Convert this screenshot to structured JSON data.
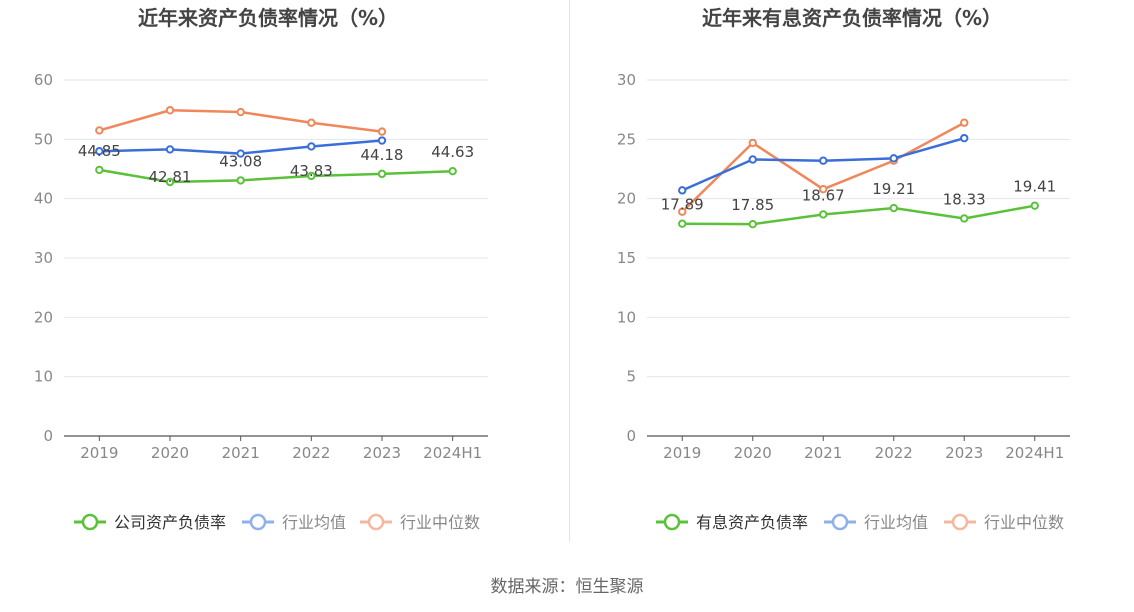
{
  "source_text": "数据来源：恒生聚源",
  "chart_data": [
    {
      "type": "line",
      "title": "近年来资产负债率情况（%）",
      "categories": [
        "2019",
        "2020",
        "2021",
        "2022",
        "2023",
        "2024H1"
      ],
      "ylim": [
        0,
        60
      ],
      "yticks": [
        0,
        10,
        20,
        30,
        40,
        50,
        60
      ],
      "grid": true,
      "legend_position": "bottom",
      "series": [
        {
          "name": "公司资产负债率",
          "color": "#5ac13a",
          "values": [
            44.85,
            42.81,
            43.08,
            43.83,
            44.18,
            44.63
          ],
          "show_labels": true
        },
        {
          "name": "行业均值",
          "color": "#3a6fd9",
          "values": [
            48.0,
            48.3,
            47.6,
            48.8,
            49.8,
            null
          ],
          "show_labels": false
        },
        {
          "name": "行业中位数",
          "color": "#f0875a",
          "values": [
            51.5,
            54.9,
            54.6,
            52.8,
            51.3,
            null
          ],
          "show_labels": false
        }
      ]
    },
    {
      "type": "line",
      "title": "近年来有息资产负债率情况（%）",
      "categories": [
        "2019",
        "2020",
        "2021",
        "2022",
        "2023",
        "2024H1"
      ],
      "ylim": [
        0,
        30
      ],
      "yticks": [
        0,
        5,
        10,
        15,
        20,
        25,
        30
      ],
      "grid": true,
      "legend_position": "bottom",
      "series": [
        {
          "name": "有息资产负债率",
          "color": "#5ac13a",
          "values": [
            17.89,
            17.85,
            18.67,
            19.21,
            18.33,
            19.41
          ],
          "show_labels": true
        },
        {
          "name": "行业均值",
          "color": "#3a6fd9",
          "values": [
            20.7,
            23.3,
            23.2,
            23.4,
            25.1,
            null
          ],
          "show_labels": false
        },
        {
          "name": "行业中位数",
          "color": "#f0875a",
          "values": [
            18.9,
            24.7,
            20.8,
            23.2,
            26.4,
            null
          ],
          "show_labels": false
        }
      ]
    }
  ]
}
